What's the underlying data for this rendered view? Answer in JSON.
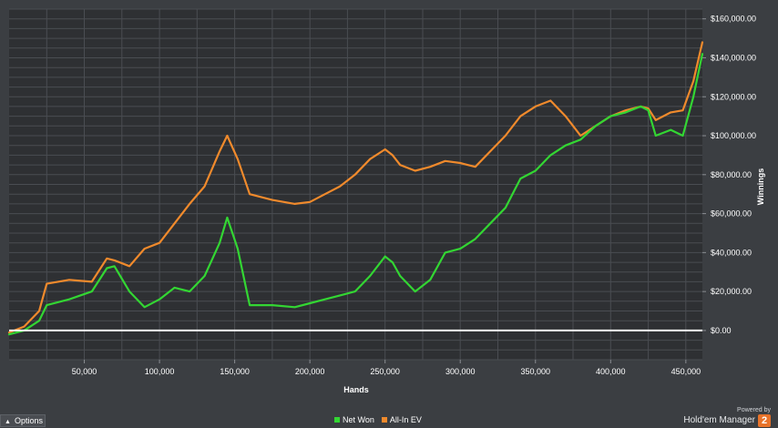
{
  "chart_data": {
    "type": "line",
    "xlabel": "Hands",
    "ylabel": "Winnings",
    "xlim": [
      0,
      461000
    ],
    "ylim": [
      -15000,
      165000
    ],
    "x_ticks": [
      50000,
      100000,
      150000,
      200000,
      250000,
      300000,
      350000,
      400000,
      450000
    ],
    "x_tick_labels": [
      "50,000",
      "100,000",
      "150,000",
      "200,000",
      "250,000",
      "300,000",
      "350,000",
      "400,000",
      "450,000"
    ],
    "y_ticks": [
      0,
      20000,
      40000,
      60000,
      80000,
      100000,
      120000,
      140000,
      160000
    ],
    "y_tick_labels": [
      "$0.00",
      "$20,000.00",
      "$40,000.00",
      "$60,000.00",
      "$80,000.00",
      "$100,000.00",
      "$120,000.00",
      "$140,000.00",
      "$160,000.00"
    ],
    "grid": true,
    "legend_position": "bottom-center",
    "series": [
      {
        "name": "Net Won",
        "color": "#33d633",
        "x": [
          0,
          10000,
          20000,
          25000,
          40000,
          55000,
          65000,
          70000,
          80000,
          90000,
          100000,
          110000,
          120000,
          130000,
          140000,
          145000,
          152000,
          160000,
          175000,
          190000,
          200000,
          210000,
          220000,
          230000,
          240000,
          250000,
          255000,
          260000,
          270000,
          280000,
          290000,
          300000,
          310000,
          320000,
          330000,
          340000,
          350000,
          360000,
          370000,
          380000,
          390000,
          400000,
          410000,
          420000,
          425000,
          430000,
          440000,
          448000,
          455000,
          461000
        ],
        "values": [
          -2000,
          0,
          5000,
          13000,
          16000,
          20000,
          32000,
          33000,
          20000,
          12000,
          16000,
          22000,
          20000,
          28000,
          45000,
          58000,
          42000,
          13000,
          13000,
          12000,
          14000,
          16000,
          18000,
          20000,
          28000,
          38000,
          35000,
          28000,
          20000,
          26000,
          40000,
          42000,
          47000,
          55000,
          63000,
          78000,
          82000,
          90000,
          95000,
          98000,
          105000,
          110000,
          112000,
          115000,
          113000,
          100000,
          103000,
          100000,
          120000,
          142000
        ]
      },
      {
        "name": "All-In EV",
        "color": "#f08a2c",
        "x": [
          0,
          10000,
          20000,
          25000,
          40000,
          55000,
          65000,
          70000,
          80000,
          90000,
          100000,
          110000,
          120000,
          130000,
          140000,
          145000,
          152000,
          160000,
          175000,
          190000,
          200000,
          210000,
          220000,
          230000,
          240000,
          250000,
          255000,
          260000,
          270000,
          280000,
          290000,
          300000,
          310000,
          320000,
          330000,
          340000,
          350000,
          360000,
          370000,
          380000,
          390000,
          400000,
          410000,
          420000,
          425000,
          430000,
          440000,
          448000,
          455000,
          461000
        ],
        "values": [
          -1000,
          2000,
          10000,
          24000,
          26000,
          25000,
          37000,
          36000,
          33000,
          42000,
          45000,
          55000,
          65000,
          74000,
          92000,
          100000,
          88000,
          70000,
          67000,
          65000,
          66000,
          70000,
          74000,
          80000,
          88000,
          93000,
          90000,
          85000,
          82000,
          84000,
          87000,
          86000,
          84000,
          92000,
          100000,
          110000,
          115000,
          118000,
          110000,
          100000,
          105000,
          110000,
          113000,
          115000,
          114000,
          108000,
          112000,
          113000,
          128000,
          148000
        ]
      }
    ]
  },
  "ui": {
    "options_label": "Options",
    "brand_powered": "Powered by",
    "brand_name": "Hold'em Manager",
    "brand_badge": "2"
  }
}
